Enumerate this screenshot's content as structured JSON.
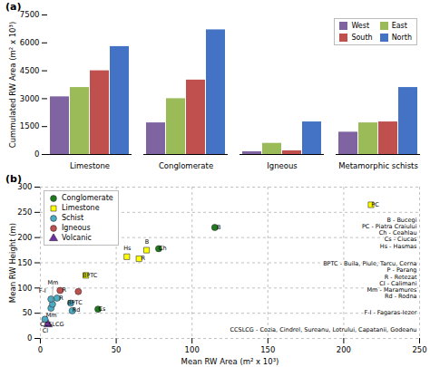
{
  "chart_data": [
    {
      "type": "bar",
      "title": "(a)",
      "categories": [
        "Limestone",
        "Conglomerate",
        "Igneous",
        "Metamorphic schists"
      ],
      "series": [
        {
          "name": "West",
          "color": "#8064A2",
          "values": [
            3100,
            1700,
            150,
            1200
          ]
        },
        {
          "name": "East",
          "color": "#9BBB59",
          "values": [
            3600,
            3000,
            600,
            1700
          ]
        },
        {
          "name": "South",
          "color": "#C0504D",
          "values": [
            4500,
            4000,
            200,
            1750
          ]
        },
        {
          "name": "North",
          "color": "#4472C4",
          "values": [
            5800,
            6700,
            1750,
            3600
          ]
        }
      ],
      "ylabel": "Cummulated RW Area (m² x 10³)",
      "ylim": [
        0,
        7500
      ],
      "yticks": [
        0,
        1500,
        3000,
        4500,
        6000,
        7500
      ],
      "legend": "upper right",
      "grid": false
    },
    {
      "type": "scatter",
      "title": "(b)",
      "xlabel": "Mean RW Area (m² x 10³)",
      "ylabel": "Mean RW Height (m)",
      "xlim": [
        0,
        250
      ],
      "ylim": [
        0,
        300
      ],
      "xticks": [
        0,
        50,
        100,
        150,
        200,
        250
      ],
      "yticks": [
        0,
        50,
        100,
        150,
        200,
        250,
        300
      ],
      "grid": true,
      "legend": "upper left",
      "series": [
        {
          "name": "Conglomerate",
          "color": "#1F7A1F",
          "marker": "circle"
        },
        {
          "name": "Limestone",
          "color": "#FFFF00",
          "marker": "square"
        },
        {
          "name": "Schist",
          "color": "#4BACC6",
          "marker": "circle"
        },
        {
          "name": "Igneous",
          "color": "#C0504D",
          "marker": "circle"
        },
        {
          "name": "Volcanic",
          "color": "#7030A0",
          "marker": "triangle"
        }
      ],
      "points": [
        {
          "x": 5,
          "y": 28,
          "label": "CCSLCG",
          "series": "Volcanic"
        },
        {
          "x": 3,
          "y": 38,
          "label": "Cl",
          "series": "Schist"
        },
        {
          "x": 7,
          "y": 60,
          "label": "Mm",
          "series": "Schist"
        },
        {
          "x": 8,
          "y": 68,
          "label": "Mm",
          "series": "Schist"
        },
        {
          "x": 7,
          "y": 78,
          "label": "F-I",
          "series": "Schist"
        },
        {
          "x": 11,
          "y": 80,
          "label": "R",
          "series": "Schist"
        },
        {
          "x": 20,
          "y": 70,
          "label": "BPTC",
          "series": "Schist"
        },
        {
          "x": 21,
          "y": 55,
          "label": "Rd",
          "series": "Schist"
        },
        {
          "x": 13,
          "y": 95,
          "label": "R",
          "series": "Igneous"
        },
        {
          "x": 25,
          "y": 93,
          "label": null,
          "series": "Igneous"
        },
        {
          "x": 30,
          "y": 125,
          "label": "BPTC",
          "series": "Limestone"
        },
        {
          "x": 38,
          "y": 58,
          "label": "Cs",
          "series": "Conglomerate"
        },
        {
          "x": 57,
          "y": 162,
          "label": "Hs",
          "series": "Limestone"
        },
        {
          "x": 65,
          "y": 158,
          "label": "R",
          "series": "Limestone"
        },
        {
          "x": 70,
          "y": 175,
          "label": "B",
          "series": "Limestone"
        },
        {
          "x": 78,
          "y": 178,
          "label": "Ch",
          "series": "Conglomerate"
        },
        {
          "x": 115,
          "y": 220,
          "label": "B",
          "series": "Conglomerate"
        },
        {
          "x": 218,
          "y": 265,
          "label": "PC",
          "series": "Limestone"
        }
      ],
      "annotations": [
        {
          "text": "B - Bucegi",
          "y": 235
        },
        {
          "text": "PC - Piatra Craiului",
          "y": 222
        },
        {
          "text": "Ch - Ceahlau",
          "y": 209
        },
        {
          "text": "Cs - Ciucas",
          "y": 196
        },
        {
          "text": "Hs - Hasmas",
          "y": 183
        },
        {
          "text": "BPTC - Buila, Piule, Tarcu, Cerna",
          "y": 148
        },
        {
          "text": "P - Parang",
          "y": 135
        },
        {
          "text": "R - Retezat",
          "y": 122
        },
        {
          "text": "CI - Calimani",
          "y": 109
        },
        {
          "text": "Mm - Maramures",
          "y": 96
        },
        {
          "text": "Rd - Rodna",
          "y": 83
        },
        {
          "text": "F-I - Fagaras-Iezer",
          "y": 52
        },
        {
          "text": "CCSLCG - Cozia, Cindrel, Sureanu, Lotrului, Capatanii, Godeanu",
          "y": 18
        }
      ]
    }
  ]
}
